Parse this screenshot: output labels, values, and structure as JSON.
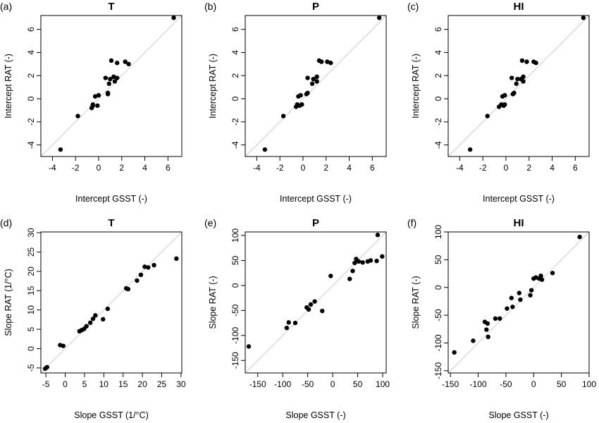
{
  "chart_data": [
    {
      "type": "scatter",
      "panel_label": "(a)",
      "title": "T",
      "xlabel": "Intercept GSST (-)",
      "ylabel": "Intercept RAT (-)",
      "xlim": [
        -5,
        7.2
      ],
      "ylim": [
        -5,
        7.2
      ],
      "xticks": [
        -4,
        -2,
        0,
        2,
        4,
        6
      ],
      "yticks": [
        -4,
        -2,
        0,
        2,
        4,
        6
      ],
      "reference_line": "1:1",
      "points": [
        {
          "x": -3.3,
          "y": -4.4
        },
        {
          "x": -1.8,
          "y": -1.5
        },
        {
          "x": -0.6,
          "y": -0.8
        },
        {
          "x": -0.5,
          "y": -0.6
        },
        {
          "x": -0.5,
          "y": -0.5
        },
        {
          "x": -0.1,
          "y": -0.6
        },
        {
          "x": -0.3,
          "y": 0.2
        },
        {
          "x": 0.0,
          "y": 0.3
        },
        {
          "x": 0.8,
          "y": 0.4
        },
        {
          "x": 0.8,
          "y": 0.5
        },
        {
          "x": 0.6,
          "y": 1.8
        },
        {
          "x": 0.9,
          "y": 1.3
        },
        {
          "x": 1.0,
          "y": 1.7
        },
        {
          "x": 1.3,
          "y": 1.9
        },
        {
          "x": 1.4,
          "y": 1.5
        },
        {
          "x": 1.6,
          "y": 1.8
        },
        {
          "x": 1.1,
          "y": 3.3
        },
        {
          "x": 1.6,
          "y": 3.1
        },
        {
          "x": 2.3,
          "y": 3.2
        },
        {
          "x": 2.6,
          "y": 3.0
        },
        {
          "x": 6.5,
          "y": 7.0
        }
      ]
    },
    {
      "type": "scatter",
      "panel_label": "(b)",
      "title": "P",
      "xlabel": "Intercept GSST (-)",
      "ylabel": "Intercept RAT (-)",
      "xlim": [
        -5,
        7.2
      ],
      "ylim": [
        -5,
        7.2
      ],
      "xticks": [
        -4,
        -2,
        0,
        2,
        4,
        6
      ],
      "yticks": [
        -4,
        -2,
        0,
        2,
        4,
        6
      ],
      "reference_line": "1:1",
      "points": [
        {
          "x": -3.3,
          "y": -4.4
        },
        {
          "x": -1.7,
          "y": -1.5
        },
        {
          "x": -0.6,
          "y": -0.7
        },
        {
          "x": -0.5,
          "y": -0.5
        },
        {
          "x": -0.3,
          "y": -0.6
        },
        {
          "x": -0.1,
          "y": -0.5
        },
        {
          "x": -0.4,
          "y": 0.2
        },
        {
          "x": -0.2,
          "y": 0.3
        },
        {
          "x": 0.3,
          "y": 0.4
        },
        {
          "x": 0.4,
          "y": 0.5
        },
        {
          "x": 0.4,
          "y": 1.8
        },
        {
          "x": 0.8,
          "y": 1.3
        },
        {
          "x": 0.9,
          "y": 1.7
        },
        {
          "x": 1.2,
          "y": 1.9
        },
        {
          "x": 1.2,
          "y": 1.5
        },
        {
          "x": 1.4,
          "y": 3.3
        },
        {
          "x": 1.6,
          "y": 3.2
        },
        {
          "x": 2.1,
          "y": 3.2
        },
        {
          "x": 2.4,
          "y": 3.1
        },
        {
          "x": 6.6,
          "y": 7.0
        }
      ]
    },
    {
      "type": "scatter",
      "panel_label": "(c)",
      "title": "HI",
      "xlabel": "Intercept GSST (-)",
      "ylabel": "Intercept RAT (-)",
      "xlim": [
        -5,
        7.2
      ],
      "ylim": [
        -5,
        7.2
      ],
      "xticks": [
        -4,
        -2,
        0,
        2,
        4,
        6
      ],
      "yticks": [
        -4,
        -2,
        0,
        2,
        4,
        6
      ],
      "reference_line": "1:1",
      "points": [
        {
          "x": -3.1,
          "y": -4.4
        },
        {
          "x": -1.6,
          "y": -1.5
        },
        {
          "x": -0.6,
          "y": -0.7
        },
        {
          "x": -0.4,
          "y": -0.5
        },
        {
          "x": -0.2,
          "y": -0.6
        },
        {
          "x": -0.1,
          "y": -0.5
        },
        {
          "x": -0.3,
          "y": 0.2
        },
        {
          "x": -0.1,
          "y": 0.3
        },
        {
          "x": 0.6,
          "y": 0.4
        },
        {
          "x": 0.7,
          "y": 0.5
        },
        {
          "x": 0.5,
          "y": 1.8
        },
        {
          "x": 0.9,
          "y": 1.3
        },
        {
          "x": 1.0,
          "y": 1.7
        },
        {
          "x": 1.3,
          "y": 1.7
        },
        {
          "x": 1.5,
          "y": 1.9
        },
        {
          "x": 1.5,
          "y": 1.5
        },
        {
          "x": 1.4,
          "y": 3.3
        },
        {
          "x": 1.8,
          "y": 3.2
        },
        {
          "x": 2.4,
          "y": 3.2
        },
        {
          "x": 2.6,
          "y": 3.1
        },
        {
          "x": 6.7,
          "y": 7.0
        }
      ]
    },
    {
      "type": "scatter",
      "panel_label": "(d)",
      "title": "T",
      "xlabel": "Slope GSST (1/°C)",
      "ylabel": "Slope RAT (1/°C)",
      "xlim": [
        -6.3,
        30.2
      ],
      "ylim": [
        -6.3,
        30.2
      ],
      "xticks": [
        -5,
        0,
        5,
        10,
        15,
        20,
        25,
        30
      ],
      "yticks": [
        -5,
        0,
        5,
        10,
        15,
        20,
        25,
        30
      ],
      "reference_line": "1:1",
      "points": [
        {
          "x": -5.2,
          "y": -5.2
        },
        {
          "x": -4.7,
          "y": -4.8
        },
        {
          "x": -1.3,
          "y": 0.9
        },
        {
          "x": -0.5,
          "y": 0.7
        },
        {
          "x": 3.7,
          "y": 4.5
        },
        {
          "x": 4.3,
          "y": 4.8
        },
        {
          "x": 4.9,
          "y": 5.1
        },
        {
          "x": 5.5,
          "y": 5.8
        },
        {
          "x": 6.5,
          "y": 6.7
        },
        {
          "x": 7.2,
          "y": 7.7
        },
        {
          "x": 7.8,
          "y": 8.6
        },
        {
          "x": 9.8,
          "y": 7.6
        },
        {
          "x": 11.0,
          "y": 10.3
        },
        {
          "x": 15.8,
          "y": 15.6
        },
        {
          "x": 16.3,
          "y": 15.4
        },
        {
          "x": 18.6,
          "y": 17.6
        },
        {
          "x": 19.6,
          "y": 19.1
        },
        {
          "x": 20.6,
          "y": 21.2
        },
        {
          "x": 21.5,
          "y": 21.0
        },
        {
          "x": 23.0,
          "y": 21.6
        },
        {
          "x": 28.8,
          "y": 23.3
        }
      ]
    },
    {
      "type": "scatter",
      "panel_label": "(e)",
      "title": "P",
      "xlabel": "Slope GSST (-)",
      "ylabel": "Slope RAT (-)",
      "xlim": [
        -175,
        107
      ],
      "ylim": [
        -175,
        107
      ],
      "xticks": [
        -150,
        -100,
        -50,
        0,
        50,
        100
      ],
      "yticks": [
        -150,
        -100,
        -50,
        0,
        50,
        100
      ],
      "reference_line": "1:1",
      "points": [
        {
          "x": -168,
          "y": -122
        },
        {
          "x": -92,
          "y": -85
        },
        {
          "x": -88,
          "y": -74
        },
        {
          "x": -75,
          "y": -75
        },
        {
          "x": -52,
          "y": -44
        },
        {
          "x": -48,
          "y": -48
        },
        {
          "x": -44,
          "y": -38
        },
        {
          "x": -36,
          "y": -32
        },
        {
          "x": -21,
          "y": -51
        },
        {
          "x": -4,
          "y": 19
        },
        {
          "x": 34,
          "y": 13
        },
        {
          "x": 40,
          "y": 29
        },
        {
          "x": 44,
          "y": 45
        },
        {
          "x": 47,
          "y": 53
        },
        {
          "x": 52,
          "y": 48
        },
        {
          "x": 60,
          "y": 46
        },
        {
          "x": 70,
          "y": 48
        },
        {
          "x": 76,
          "y": 50
        },
        {
          "x": 88,
          "y": 49
        },
        {
          "x": 90,
          "y": 101
        },
        {
          "x": 99,
          "y": 58
        }
      ]
    },
    {
      "type": "scatter",
      "panel_label": "(f)",
      "title": "HI",
      "xlabel": "Slope GSST (-)",
      "ylabel": "Slope RAT (-)",
      "xlim": [
        -154,
        100
      ],
      "ylim": [
        -154,
        100
      ],
      "xticks": [
        -150,
        -100,
        -50,
        0,
        50,
        100
      ],
      "yticks": [
        -150,
        -100,
        -50,
        0,
        50,
        100
      ],
      "reference_line": "1:1",
      "points": [
        {
          "x": -143,
          "y": -117
        },
        {
          "x": -109,
          "y": -96
        },
        {
          "x": -88,
          "y": -62
        },
        {
          "x": -85,
          "y": -76
        },
        {
          "x": -83,
          "y": -65
        },
        {
          "x": -82,
          "y": -89
        },
        {
          "x": -69,
          "y": -56
        },
        {
          "x": -61,
          "y": -56
        },
        {
          "x": -48,
          "y": -38
        },
        {
          "x": -40,
          "y": -19
        },
        {
          "x": -38,
          "y": -35
        },
        {
          "x": -26,
          "y": -10
        },
        {
          "x": -24,
          "y": -22
        },
        {
          "x": -6,
          "y": -14
        },
        {
          "x": -4,
          "y": -5
        },
        {
          "x": 0,
          "y": 16
        },
        {
          "x": 4,
          "y": 18
        },
        {
          "x": 10,
          "y": 16
        },
        {
          "x": 13,
          "y": 21
        },
        {
          "x": 15,
          "y": 14
        },
        {
          "x": 34,
          "y": 26
        },
        {
          "x": 83,
          "y": 91
        }
      ]
    }
  ]
}
